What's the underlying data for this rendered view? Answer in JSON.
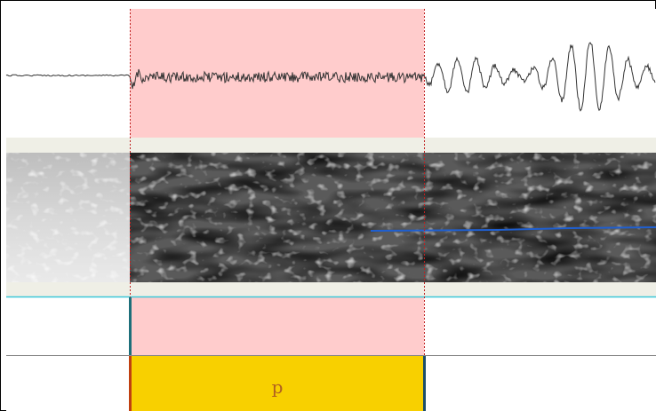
{
  "tier": {
    "interval_label": "p"
  }
}
